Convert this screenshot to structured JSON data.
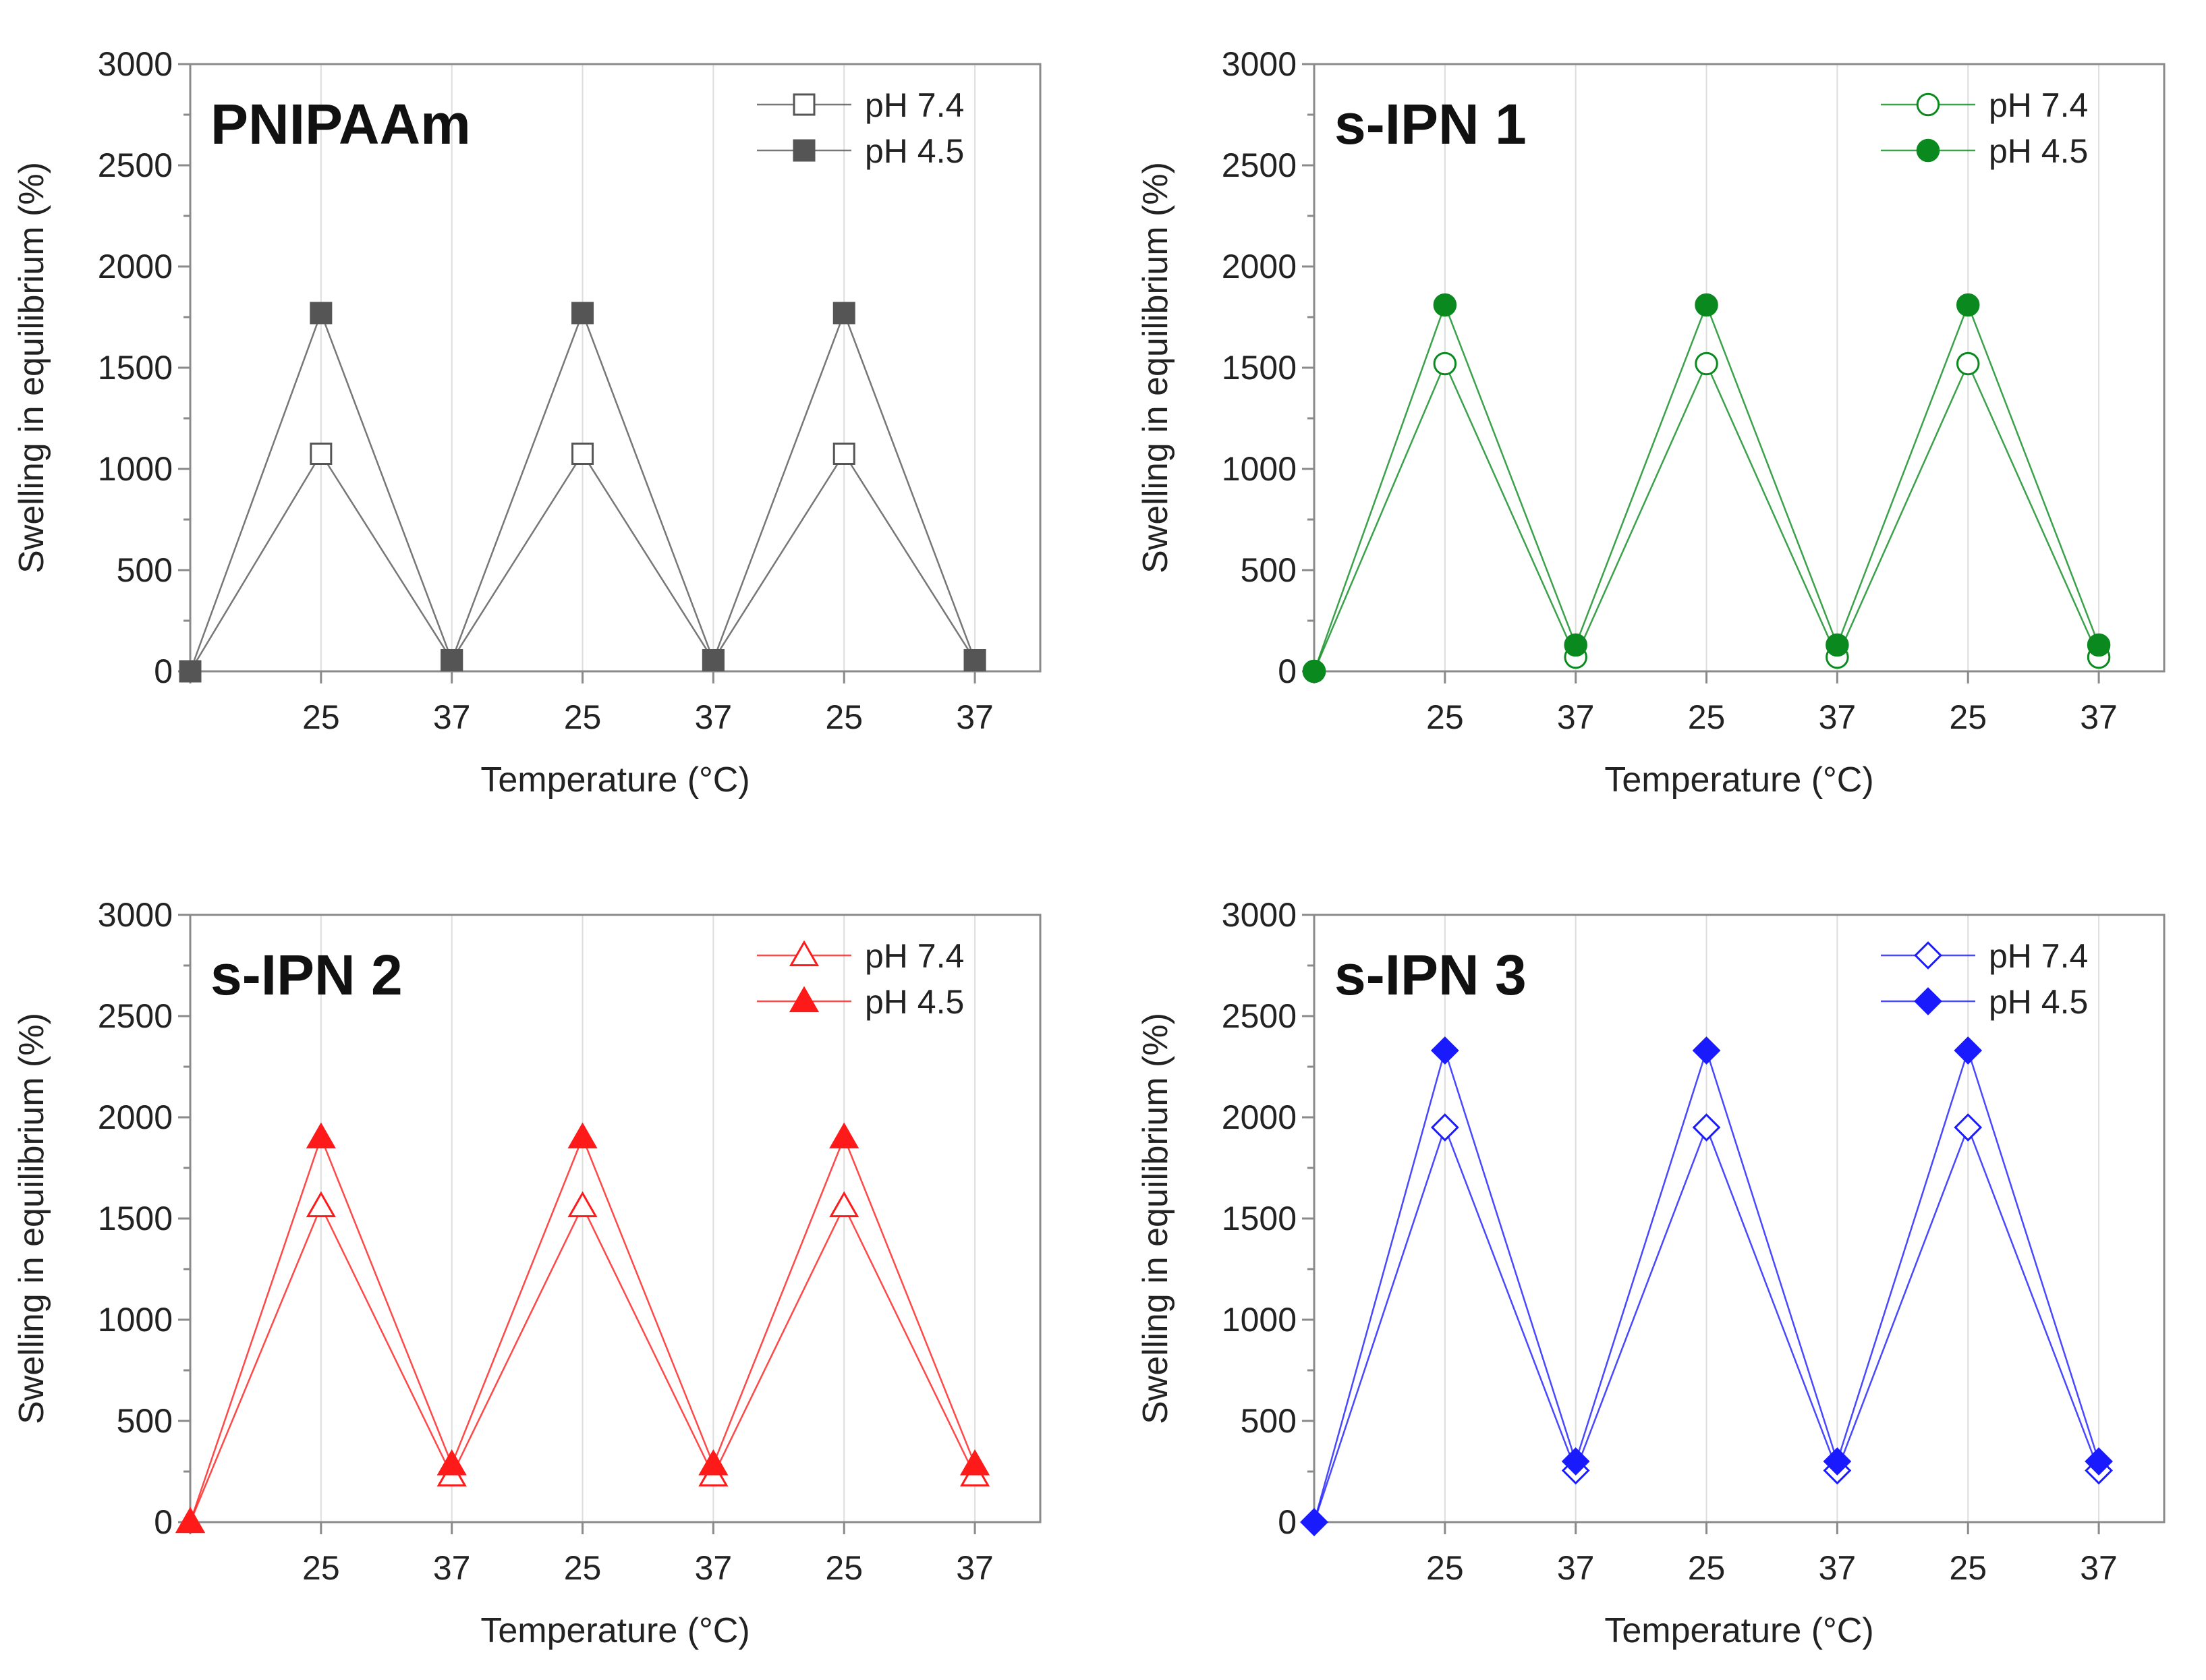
{
  "chart_data": [
    {
      "type": "line",
      "title": "PNIPAAm",
      "xlabel": "Temperature (°C)",
      "ylabel": "Swelling in equilibrium (%)",
      "categories": [
        "",
        "25",
        "37",
        "25",
        "37",
        "25",
        "37"
      ],
      "ylim": [
        0,
        3000
      ],
      "yticks": [
        0,
        500,
        1000,
        1500,
        2000,
        2500,
        3000
      ],
      "grid": "vertical",
      "legend": "top-right",
      "color": "#555555",
      "marker": "square",
      "series": [
        {
          "name": "pH 7.4",
          "filled": false,
          "values": [
            0,
            1075,
            55,
            1075,
            55,
            1075,
            55
          ]
        },
        {
          "name": "pH 4.5",
          "filled": true,
          "values": [
            0,
            1770,
            55,
            1770,
            55,
            1770,
            55
          ]
        }
      ]
    },
    {
      "type": "line",
      "title": "s-IPN 1",
      "xlabel": "Temperature (°C)",
      "ylabel": "Swelling in equilibrium (%)",
      "categories": [
        "",
        "25",
        "37",
        "25",
        "37",
        "25",
        "37"
      ],
      "ylim": [
        0,
        3000
      ],
      "yticks": [
        0,
        500,
        1000,
        1500,
        2000,
        2500,
        3000
      ],
      "grid": "vertical",
      "legend": "top-right",
      "color": "#0a8a1e",
      "marker": "circle",
      "series": [
        {
          "name": "pH 7.4",
          "filled": false,
          "values": [
            0,
            1520,
            70,
            1520,
            70,
            1520,
            70
          ]
        },
        {
          "name": "pH 4.5",
          "filled": true,
          "values": [
            0,
            1810,
            130,
            1810,
            130,
            1810,
            130
          ]
        }
      ]
    },
    {
      "type": "line",
      "title": "s-IPN 2",
      "xlabel": "Temperature (°C)",
      "ylabel": "Swelling in equilibrium (%)",
      "categories": [
        "",
        "25",
        "37",
        "25",
        "37",
        "25",
        "37"
      ],
      "ylim": [
        0,
        3000
      ],
      "yticks": [
        0,
        500,
        1000,
        1500,
        2000,
        2500,
        3000
      ],
      "grid": "vertical",
      "legend": "top-right",
      "color": "#ff1a1a",
      "marker": "triangle",
      "series": [
        {
          "name": "pH 7.4",
          "filled": false,
          "values": [
            0,
            1560,
            230,
            1560,
            230,
            1560,
            230
          ]
        },
        {
          "name": "pH 4.5",
          "filled": true,
          "values": [
            0,
            1900,
            285,
            1900,
            285,
            1900,
            285
          ]
        }
      ]
    },
    {
      "type": "line",
      "title": "s-IPN 3",
      "xlabel": "Temperature (°C)",
      "ylabel": "Swelling in equilibrium (%)",
      "categories": [
        "",
        "25",
        "37",
        "25",
        "37",
        "25",
        "37"
      ],
      "ylim": [
        0,
        3000
      ],
      "yticks": [
        0,
        500,
        1000,
        1500,
        2000,
        2500,
        3000
      ],
      "grid": "vertical",
      "legend": "top-right",
      "color": "#1a1aff",
      "marker": "diamond",
      "series": [
        {
          "name": "pH 7.4",
          "filled": false,
          "values": [
            0,
            1950,
            255,
            1950,
            255,
            1950,
            255
          ]
        },
        {
          "name": "pH 4.5",
          "filled": true,
          "values": [
            0,
            2330,
            300,
            2330,
            300,
            2330,
            300
          ]
        }
      ]
    }
  ]
}
